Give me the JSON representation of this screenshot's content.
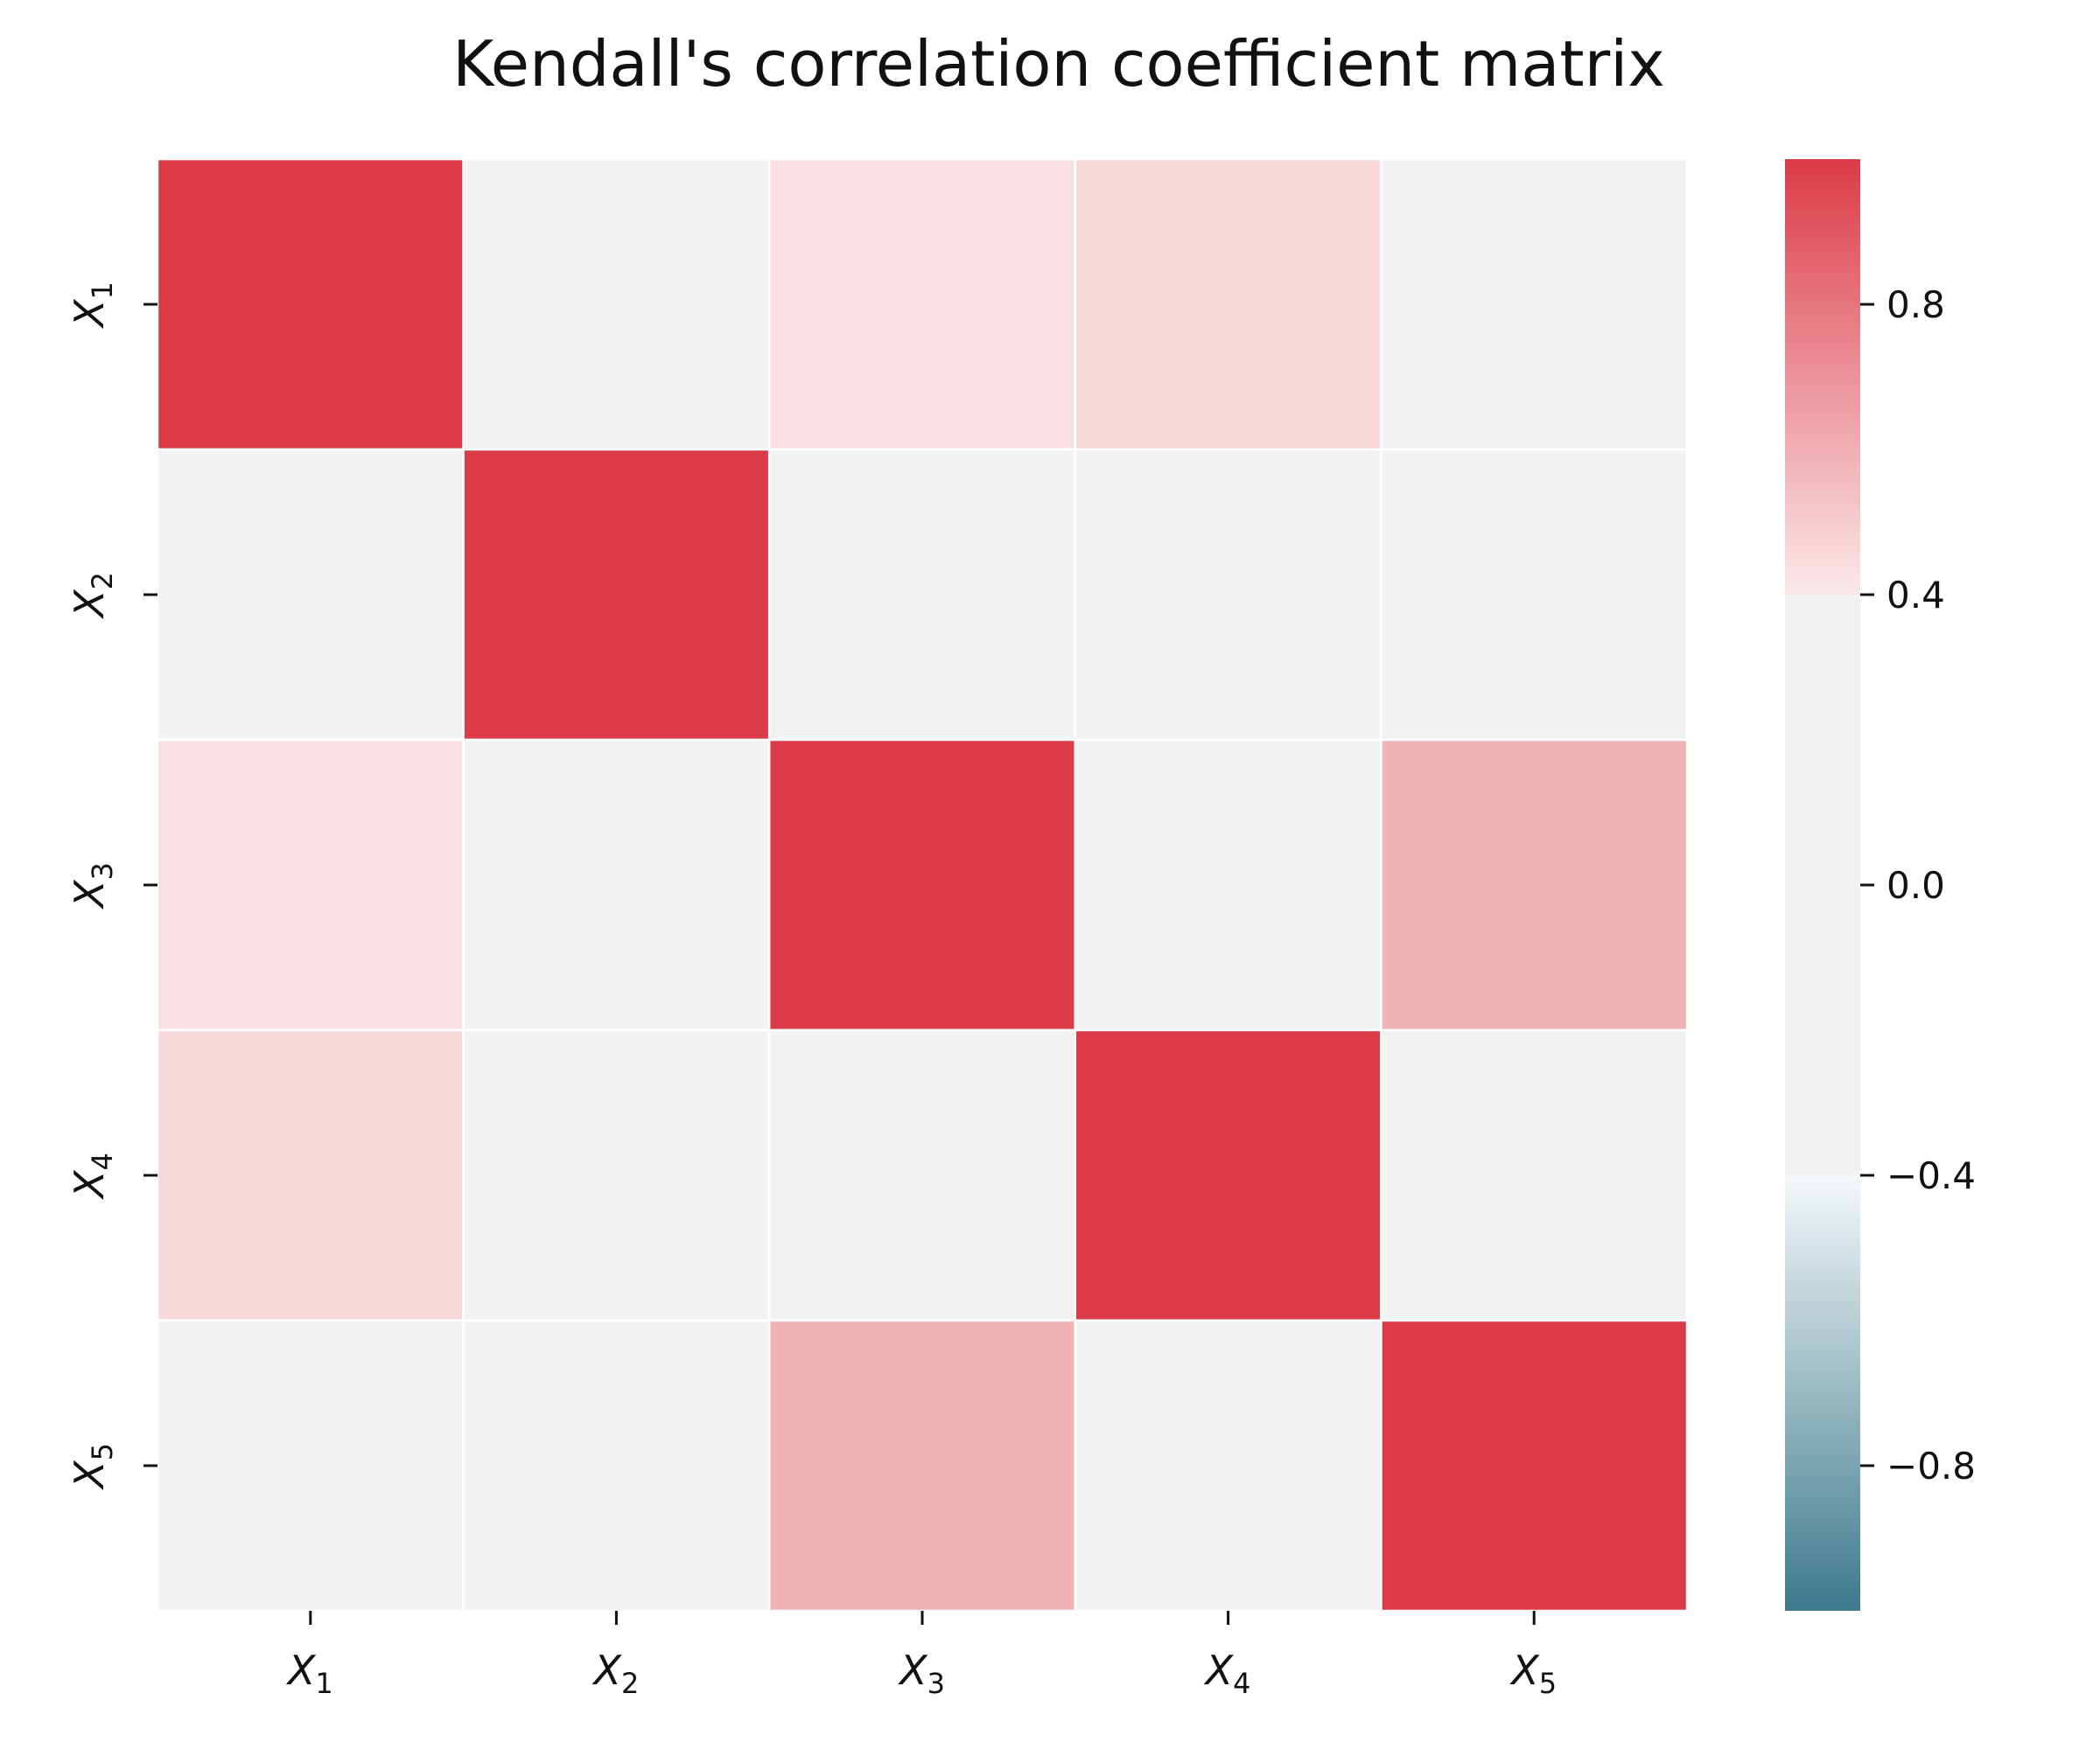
{
  "chart_data": {
    "type": "heatmap",
    "title": "Kendall's correlation coefficient matrix",
    "xlabel": "",
    "ylabel": "",
    "row_labels": [
      {
        "var": "X",
        "sub": "1"
      },
      {
        "var": "X",
        "sub": "2"
      },
      {
        "var": "X",
        "sub": "3"
      },
      {
        "var": "X",
        "sub": "4"
      },
      {
        "var": "X",
        "sub": "5"
      }
    ],
    "col_labels": [
      {
        "var": "X",
        "sub": "1"
      },
      {
        "var": "X",
        "sub": "2"
      },
      {
        "var": "X",
        "sub": "3"
      },
      {
        "var": "X",
        "sub": "4"
      },
      {
        "var": "X",
        "sub": "5"
      }
    ],
    "matrix": [
      [
        1.0,
        0.0,
        0.43,
        0.46,
        0.0
      ],
      [
        0.0,
        1.0,
        0.0,
        0.0,
        0.0
      ],
      [
        0.43,
        0.0,
        1.0,
        0.0,
        0.59
      ],
      [
        0.46,
        0.0,
        0.0,
        1.0,
        0.0
      ],
      [
        0.0,
        0.0,
        0.59,
        0.0,
        1.0
      ]
    ],
    "colorbar": {
      "vmin": -1.0,
      "vmax": 1.0,
      "ticks": [
        0.8,
        0.4,
        0.0,
        -0.4,
        -0.8
      ],
      "tick_labels": [
        "0.8",
        "0.4",
        "0.0",
        "−0.4",
        "−0.8"
      ],
      "neutral_band": [
        -0.4,
        0.4
      ],
      "colors": {
        "negative_end": "#3d7a8c",
        "negative_light": "#f4f8f9",
        "neutral": "#f2f2f2",
        "positive_light": "#fbe9ea",
        "positive_end": "#db3b47"
      }
    },
    "grid_line_color": "#ffffff"
  }
}
